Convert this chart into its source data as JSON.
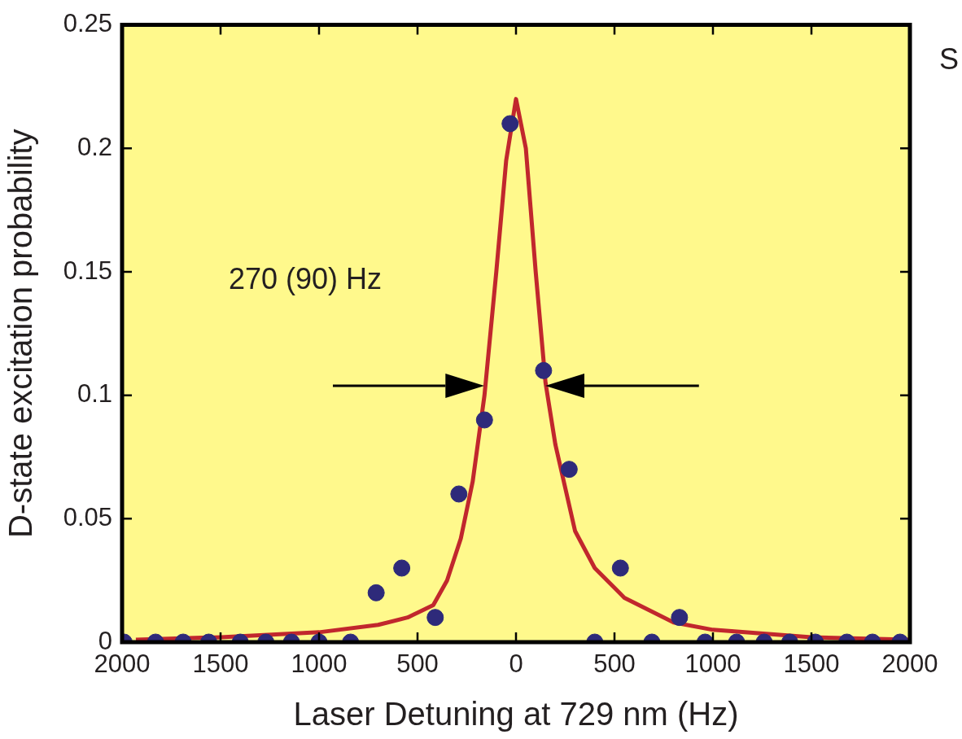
{
  "chart_data": {
    "type": "scatter",
    "xlabel": "Laser Detuning at 729 nm (Hz)",
    "ylabel": "D-state excitation probability",
    "xlim": [
      -2000,
      2000
    ],
    "xticks": [
      {
        "value": -2000,
        "label": "2000"
      },
      {
        "value": -1500,
        "label": "1500"
      },
      {
        "value": -1000,
        "label": "1000"
      },
      {
        "value": -500,
        "label": "500"
      },
      0,
      500,
      1000,
      1500,
      2000
    ],
    "ylim": [
      0,
      0.25
    ],
    "yticks": [
      0,
      0.05,
      0.1,
      0.15,
      0.2,
      0.25
    ],
    "grid": false,
    "legend": false,
    "marker": "circle",
    "annotations": [
      "270 (90) Hz",
      "S"
    ],
    "series": [
      {
        "color": "#2e2a7a",
        "x": [
          -1990,
          -1830,
          -1690,
          -1560,
          -1400,
          -1270,
          -1140,
          -1000,
          -840,
          -710,
          -580,
          -410,
          -290,
          -160,
          -30,
          140,
          270,
          400,
          530,
          690,
          830,
          960,
          1120,
          1260,
          1390,
          1520,
          1680,
          1810,
          1950
        ],
        "values": [
          0,
          0,
          0,
          0,
          0,
          0,
          0,
          0,
          0,
          0.02,
          0.03,
          0.01,
          0.06,
          0.09,
          0.21,
          0.11,
          0.07,
          0,
          0.03,
          0,
          0.01,
          0,
          0,
          0,
          0,
          0,
          0,
          0,
          0
        ]
      },
      {
        "type": "line",
        "color": "#c1272d",
        "marker": "none",
        "x": [
          -1930,
          -1500,
          -1000,
          -700,
          -550,
          -420,
          -350,
          -280,
          -220,
          -160,
          -100,
          -50,
          0,
          50,
          100,
          150,
          200,
          300,
          400,
          550,
          800,
          1000,
          1500,
          2000
        ],
        "values": [
          0.001,
          0.002,
          0.004,
          0.007,
          0.01,
          0.015,
          0.025,
          0.042,
          0.065,
          0.1,
          0.15,
          0.195,
          0.22,
          0.2,
          0.15,
          0.105,
          0.08,
          0.045,
          0.03,
          0.018,
          0.008,
          0.005,
          0.002,
          0.001
        ]
      }
    ]
  }
}
